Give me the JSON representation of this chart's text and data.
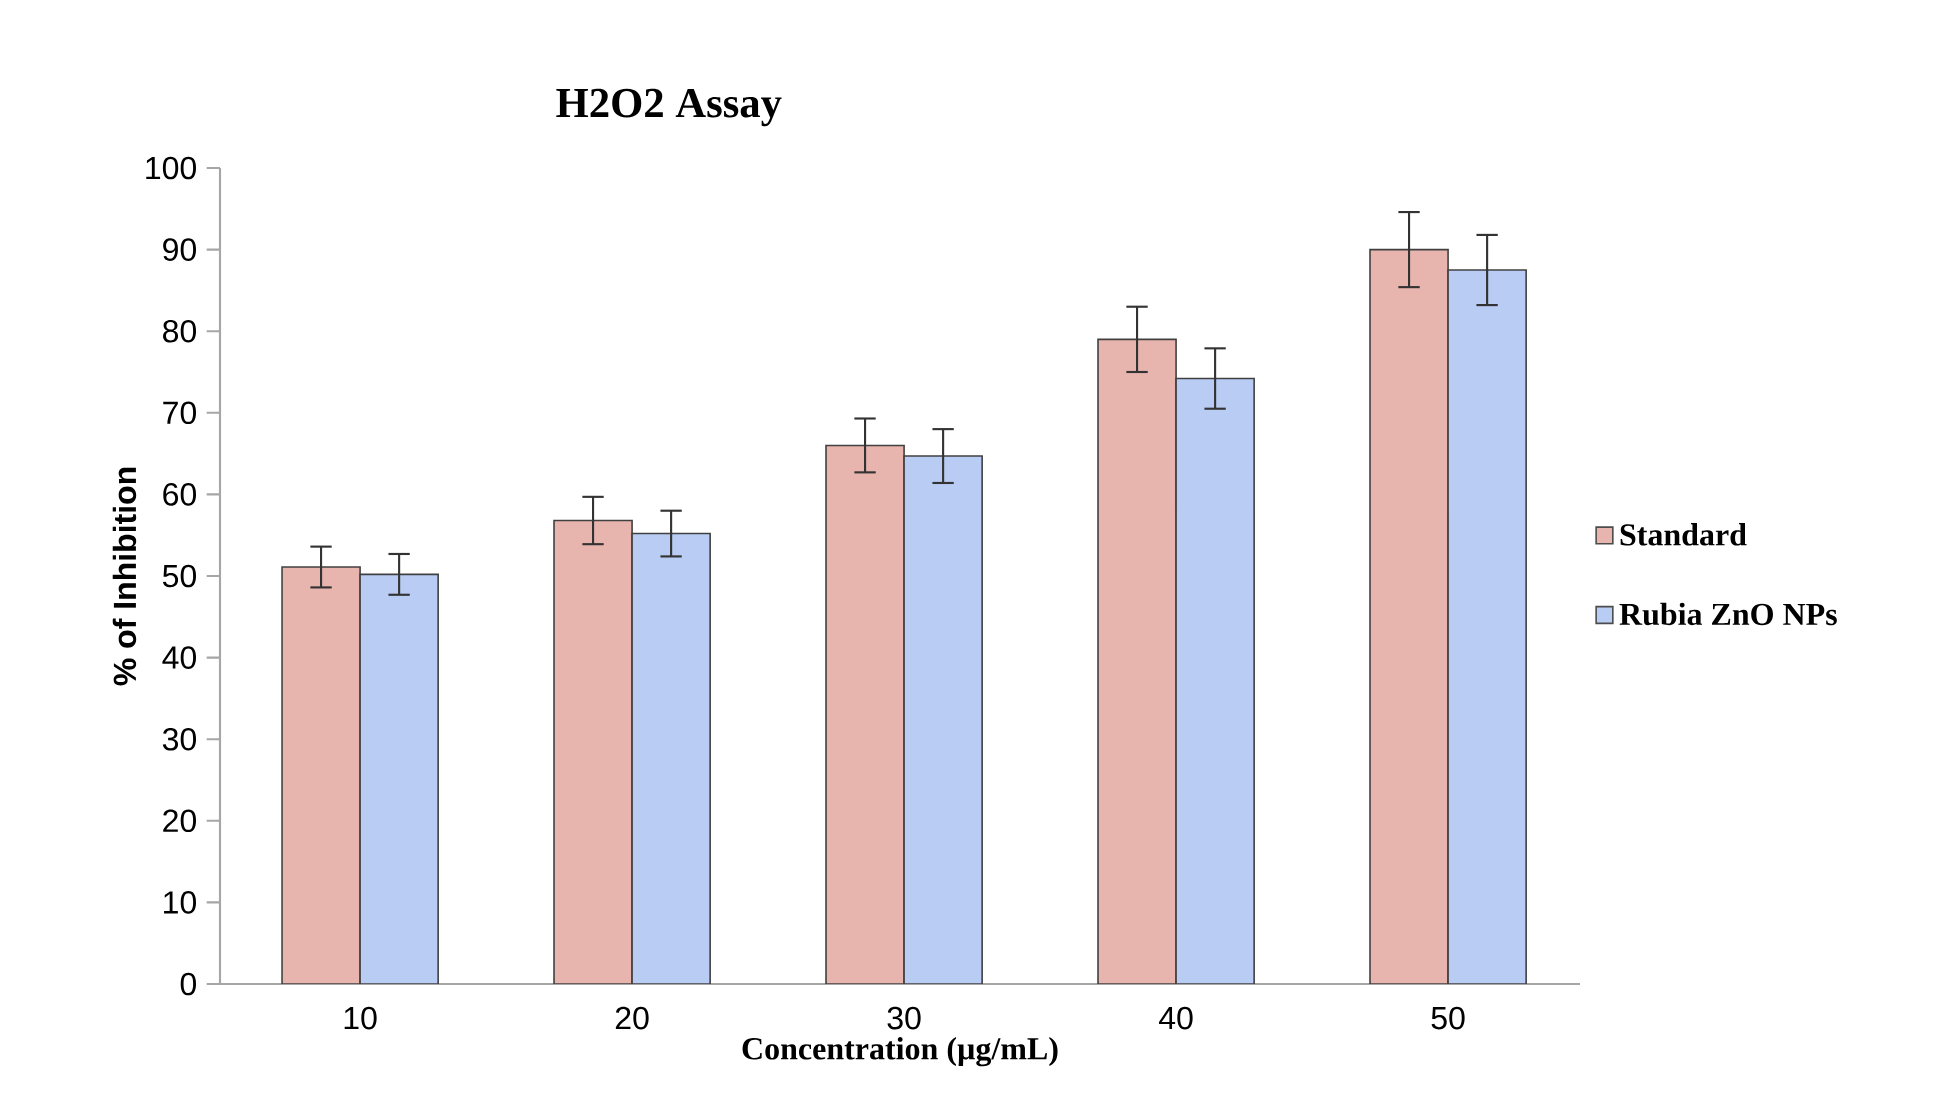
{
  "chart_data": {
    "type": "bar",
    "title": "H2O2 Assay",
    "xlabel": "Concentration (µg/mL)",
    "ylabel": "% of Inhibition",
    "categories": [
      "10",
      "20",
      "30",
      "40",
      "50"
    ],
    "series": [
      {
        "name": "Standard",
        "color": "#e8b4ae",
        "values": [
          51.1,
          56.8,
          66.0,
          79.0,
          90.0
        ],
        "errors": [
          2.5,
          2.9,
          3.3,
          4.0,
          4.6
        ]
      },
      {
        "name": "Rubia ZnO NPs",
        "color": "#b8ccf4",
        "values": [
          50.2,
          55.2,
          64.7,
          74.2,
          87.5
        ],
        "errors": [
          2.5,
          2.8,
          3.3,
          3.7,
          4.3
        ]
      }
    ],
    "ylim": [
      0,
      100
    ],
    "yticks": [
      0,
      10,
      20,
      30,
      40,
      50,
      60,
      70,
      80,
      90,
      100
    ],
    "grid": false,
    "legend": "right"
  }
}
